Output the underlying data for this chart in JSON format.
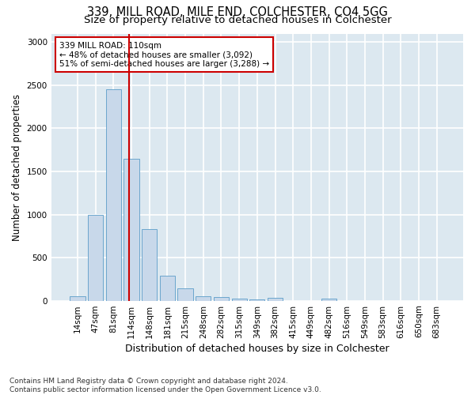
{
  "title_line1": "339, MILL ROAD, MILE END, COLCHESTER, CO4 5GG",
  "title_line2": "Size of property relative to detached houses in Colchester",
  "xlabel": "Distribution of detached houses by size in Colchester",
  "ylabel": "Number of detached properties",
  "footnote": "Contains HM Land Registry data © Crown copyright and database right 2024.\nContains public sector information licensed under the Open Government Licence v3.0.",
  "bar_labels": [
    "14sqm",
    "47sqm",
    "81sqm",
    "114sqm",
    "148sqm",
    "181sqm",
    "215sqm",
    "248sqm",
    "282sqm",
    "315sqm",
    "349sqm",
    "382sqm",
    "415sqm",
    "449sqm",
    "482sqm",
    "516sqm",
    "549sqm",
    "583sqm",
    "616sqm",
    "650sqm",
    "683sqm"
  ],
  "bar_values": [
    55,
    1000,
    2450,
    1650,
    830,
    290,
    145,
    55,
    40,
    25,
    15,
    30,
    0,
    0,
    25,
    0,
    0,
    0,
    0,
    0,
    0
  ],
  "bar_color": "#c8d8ea",
  "bar_edge_color": "#5b9dc9",
  "property_line_x": 2.85,
  "property_line_color": "#cc0000",
  "annotation_text": "339 MILL ROAD: 110sqm\n← 48% of detached houses are smaller (3,092)\n51% of semi-detached houses are larger (3,288) →",
  "annotation_box_facecolor": "#ffffff",
  "annotation_box_edgecolor": "#cc0000",
  "ylim": [
    0,
    3100
  ],
  "fig_facecolor": "#ffffff",
  "ax_facecolor": "#dce8f0",
  "grid_color": "#ffffff",
  "title1_fontsize": 10.5,
  "title2_fontsize": 9.5,
  "tick_fontsize": 7.5,
  "ylabel_fontsize": 8.5,
  "xlabel_fontsize": 9.0,
  "annot_fontsize": 7.5,
  "footnote_fontsize": 6.5
}
